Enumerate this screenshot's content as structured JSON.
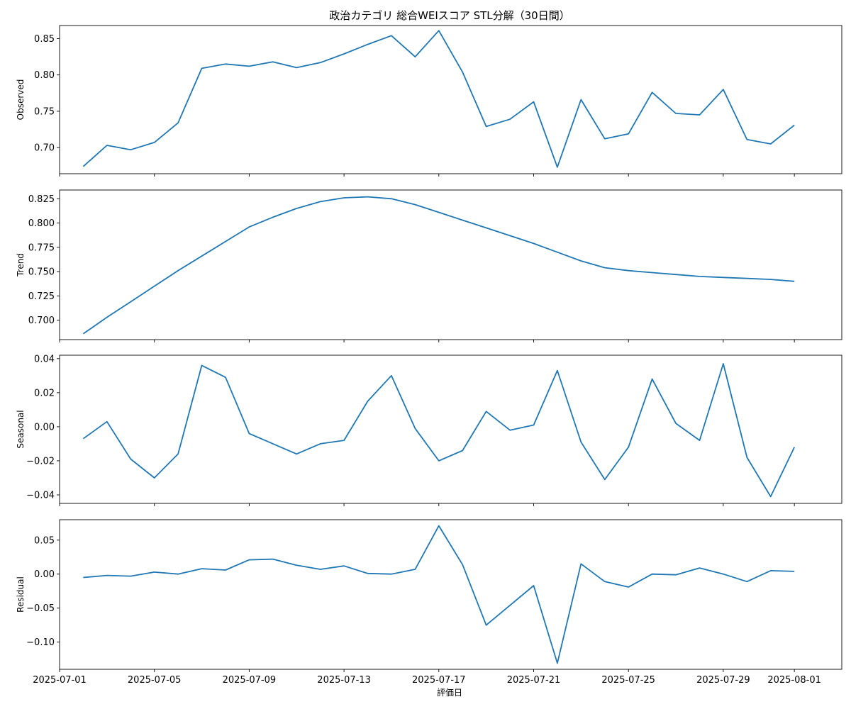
{
  "chart_data": {
    "type": "line",
    "title": "政治カテゴリ 総合WEIスコア STL分解（30日間）",
    "xlabel": "評価日",
    "color": "#1f77b4",
    "x": [
      "2025-07-02",
      "2025-07-03",
      "2025-07-04",
      "2025-07-05",
      "2025-07-06",
      "2025-07-07",
      "2025-07-08",
      "2025-07-09",
      "2025-07-10",
      "2025-07-11",
      "2025-07-12",
      "2025-07-13",
      "2025-07-14",
      "2025-07-15",
      "2025-07-16",
      "2025-07-17",
      "2025-07-18",
      "2025-07-19",
      "2025-07-20",
      "2025-07-21",
      "2025-07-22",
      "2025-07-23",
      "2025-07-24",
      "2025-07-25",
      "2025-07-26",
      "2025-07-27",
      "2025-07-28",
      "2025-07-29",
      "2025-07-30",
      "2025-07-31",
      "2025-08-01"
    ],
    "xlim": [
      "2025-07-01",
      "2025-08-03"
    ],
    "xticks": [
      "2025-07-01",
      "2025-07-05",
      "2025-07-09",
      "2025-07-13",
      "2025-07-17",
      "2025-07-21",
      "2025-07-25",
      "2025-07-29",
      "2025-08-01"
    ],
    "panels": [
      {
        "name": "observed",
        "ylabel": "Observed",
        "ylim": [
          0.664,
          0.868
        ],
        "yticks": [
          "0.70",
          "0.75",
          "0.80",
          "0.85"
        ],
        "values": [
          0.674,
          0.703,
          0.697,
          0.707,
          0.734,
          0.809,
          0.815,
          0.812,
          0.818,
          0.81,
          0.817,
          0.829,
          0.842,
          0.854,
          0.825,
          0.861,
          0.804,
          0.729,
          0.739,
          0.763,
          0.673,
          0.766,
          0.712,
          0.719,
          0.776,
          0.747,
          0.745,
          0.78,
          0.711,
          0.705,
          0.731
        ]
      },
      {
        "name": "trend",
        "ylabel": "Trend",
        "ylim": [
          0.68,
          0.834
        ],
        "yticks": [
          "0.700",
          "0.725",
          "0.750",
          "0.775",
          "0.800",
          "0.825"
        ],
        "values": [
          0.686,
          0.703,
          0.719,
          0.735,
          0.751,
          0.766,
          0.781,
          0.796,
          0.806,
          0.815,
          0.822,
          0.826,
          0.827,
          0.825,
          0.819,
          0.811,
          0.803,
          0.795,
          0.787,
          0.779,
          0.77,
          0.761,
          0.754,
          0.751,
          0.749,
          0.747,
          0.745,
          0.744,
          0.743,
          0.742,
          0.74
        ]
      },
      {
        "name": "seasonal",
        "ylabel": "Seasonal",
        "ylim": [
          -0.045,
          0.042
        ],
        "yticks": [
          "−0.04",
          "−0.02",
          "0.00",
          "0.02",
          "0.04"
        ],
        "values": [
          -0.007,
          0.003,
          -0.019,
          -0.03,
          -0.016,
          0.036,
          0.029,
          -0.004,
          -0.01,
          -0.016,
          -0.01,
          -0.008,
          0.015,
          0.03,
          -0.001,
          -0.02,
          -0.014,
          0.009,
          -0.002,
          0.001,
          0.033,
          -0.009,
          -0.031,
          -0.012,
          0.028,
          0.002,
          -0.008,
          0.037,
          -0.018,
          -0.041,
          -0.012
        ]
      },
      {
        "name": "residual",
        "ylabel": "Residual",
        "ylim": [
          -0.14,
          0.08
        ],
        "yticks": [
          "0.05",
          "0.00",
          "−0.05",
          "−0.10"
        ],
        "values": [
          -0.005,
          -0.002,
          -0.003,
          0.003,
          0.0,
          0.008,
          0.006,
          0.021,
          0.022,
          0.013,
          0.007,
          0.012,
          0.001,
          0.0,
          0.007,
          0.071,
          0.014,
          -0.075,
          -0.046,
          -0.017,
          -0.131,
          0.015,
          -0.011,
          -0.019,
          0.0,
          -0.001,
          0.009,
          0.0,
          -0.011,
          0.005,
          0.004
        ]
      }
    ]
  }
}
